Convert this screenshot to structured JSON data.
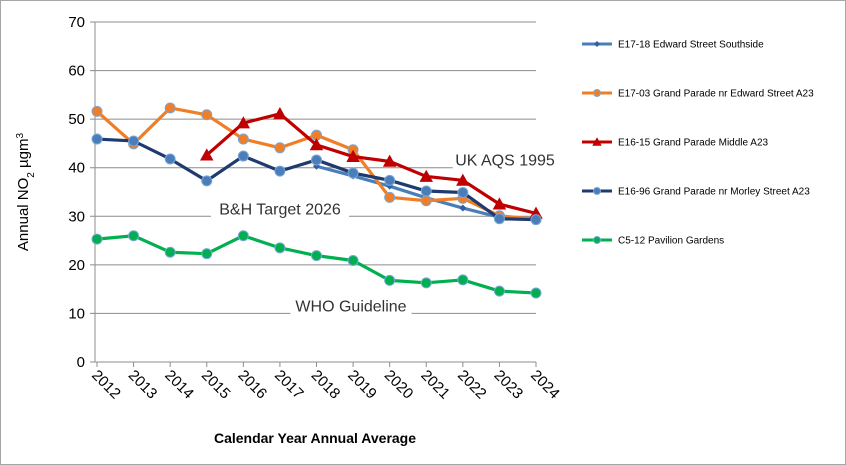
{
  "chart_data": {
    "type": "line",
    "title": "",
    "xlabel": "Calendar Year Annual Average",
    "ylabel": "Annual NO",
    "ylabel_sub": "2",
    "ylabel_unit": " µgm",
    "ylabel_sup": "3",
    "ylim": [
      0,
      70
    ],
    "yticks": [
      0,
      10,
      20,
      30,
      40,
      50,
      60,
      70
    ],
    "categories": [
      "2012",
      "2013",
      "2014",
      "2015",
      "2016",
      "2017",
      "2018",
      "2019",
      "2020",
      "2021",
      "2022",
      "2023",
      "2024"
    ],
    "grid": true,
    "legend_position": "right",
    "reference_lines": [
      {
        "label": "UK AQS 1995",
        "value": 40
      },
      {
        "label": "B&H Target 2026",
        "value": 30
      },
      {
        "label": "WHO Guideline",
        "value": 10
      }
    ],
    "series": [
      {
        "name": "E17-18 Edward Street Southside",
        "color": "#4a7ebb",
        "marker": "diamond",
        "values": [
          null,
          null,
          null,
          null,
          null,
          null,
          40.3,
          38.3,
          36.2,
          33.8,
          31.7,
          29.8,
          29.5
        ]
      },
      {
        "name": "E17-03 Grand Parade nr Edward Street A23",
        "color": "#f07e26",
        "marker": "circle",
        "values": [
          51.6,
          44.9,
          52.3,
          50.9,
          45.9,
          44.1,
          46.7,
          43.7,
          33.9,
          33.2,
          33.7,
          30.1,
          29.4
        ]
      },
      {
        "name": "E16-15 Grand Parade Middle A23",
        "color": "#c00000",
        "marker": "triangle",
        "values": [
          null,
          null,
          null,
          42.6,
          49.2,
          51.1,
          44.7,
          42.3,
          41.3,
          38.2,
          37.4,
          32.5,
          30.6
        ]
      },
      {
        "name": "E16-96 Grand Parade nr Morley Street A23",
        "color": "#1f3a6e",
        "marker": "circle",
        "values": [
          45.9,
          45.5,
          41.8,
          37.3,
          42.4,
          39.3,
          41.6,
          38.9,
          37.4,
          35.2,
          34.9,
          29.5,
          29.3
        ]
      },
      {
        "name": "C5-12 Pavilion Gardens",
        "color": "#00b050",
        "marker": "circle",
        "values": [
          25.3,
          26.0,
          22.6,
          22.3,
          26.0,
          23.5,
          21.9,
          20.9,
          16.8,
          16.3,
          16.9,
          14.6,
          14.2
        ]
      }
    ]
  }
}
